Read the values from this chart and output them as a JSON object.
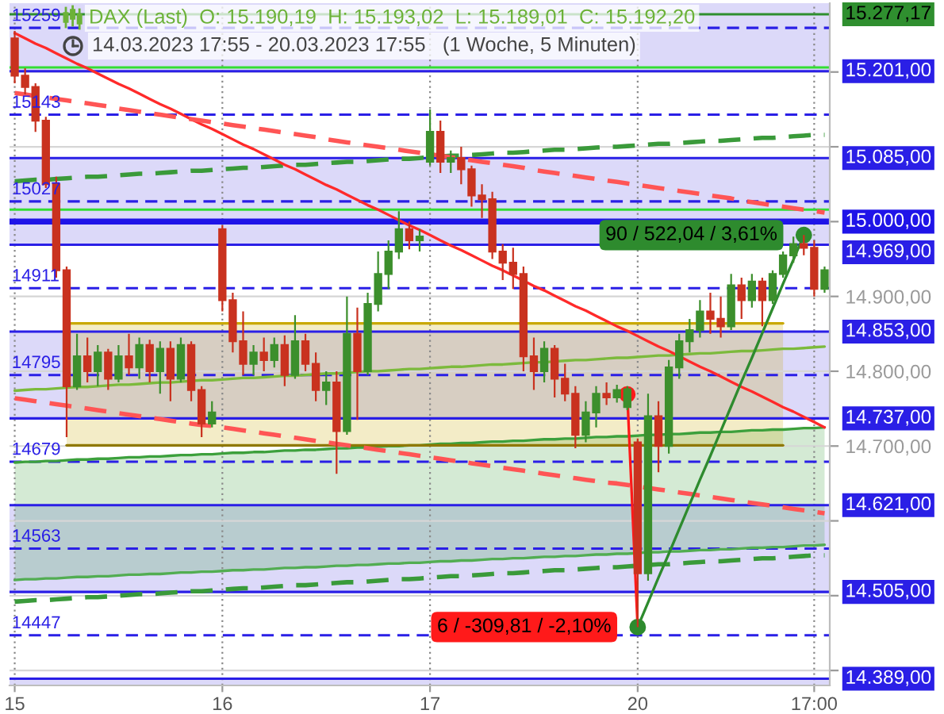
{
  "chart_data": {
    "type": "candlestick",
    "title": "DAX (Last)  O: 15.190,19  H: 15.193,02  L: 15.189,01  C: 15.192,20",
    "subtitle": "14.03.2023 17:55 - 20.03.2023 17:55   (1 Woche, 5 Minuten)",
    "categories": [
      "15",
      null,
      null,
      null,
      null,
      null,
      null,
      null,
      null,
      null,
      null,
      null,
      null,
      null,
      null,
      null,
      null,
      null,
      null,
      null,
      "16",
      null,
      null,
      null,
      null,
      null,
      null,
      null,
      null,
      null,
      null,
      null,
      null,
      null,
      null,
      null,
      null,
      null,
      null,
      null,
      "17",
      null,
      null,
      null,
      null,
      null,
      null,
      null,
      null,
      null,
      null,
      null,
      null,
      null,
      null,
      null,
      null,
      null,
      null,
      null,
      "20",
      null,
      null,
      null,
      null,
      null,
      null,
      null,
      null,
      null,
      null,
      null,
      null,
      null,
      null,
      null,
      null,
      "17:00",
      null
    ],
    "ohlc": [
      [
        15245,
        15255,
        15185,
        15195
      ],
      [
        15195,
        15205,
        15170,
        15180
      ],
      [
        15180,
        15185,
        15120,
        15135
      ],
      [
        15135,
        15140,
        15045,
        15050
      ],
      [
        15050,
        15060,
        14925,
        14935
      ],
      [
        14935,
        14940,
        14712,
        14780
      ],
      [
        14780,
        14850,
        14775,
        14820
      ],
      [
        14820,
        14845,
        14785,
        14800
      ],
      [
        14800,
        14835,
        14780,
        14825
      ],
      [
        14825,
        14830,
        14775,
        14790
      ],
      [
        14790,
        14835,
        14785,
        14820
      ],
      [
        14820,
        14850,
        14795,
        14805
      ],
      [
        14805,
        14845,
        14790,
        14835
      ],
      [
        14835,
        14842,
        14785,
        14800
      ],
      [
        14800,
        14840,
        14770,
        14830
      ],
      [
        14830,
        14840,
        14760,
        14790
      ],
      [
        14790,
        14845,
        14785,
        14835
      ],
      [
        14835,
        14840,
        14760,
        14775
      ],
      [
        14775,
        14780,
        14712,
        14730
      ],
      [
        14730,
        14760,
        14725,
        14745
      ],
      [
        14990,
        14995,
        14880,
        14895
      ],
      [
        14895,
        14905,
        14825,
        14840
      ],
      [
        14840,
        14880,
        14795,
        14810
      ],
      [
        14810,
        14835,
        14795,
        14825
      ],
      [
        14825,
        14845,
        14800,
        14815
      ],
      [
        14815,
        14845,
        14805,
        14835
      ],
      [
        14835,
        14848,
        14780,
        14795
      ],
      [
        14795,
        14875,
        14790,
        14840
      ],
      [
        14840,
        14850,
        14800,
        14810
      ],
      [
        14810,
        14825,
        14760,
        14775
      ],
      [
        14775,
        14800,
        14755,
        14785
      ],
      [
        14785,
        14800,
        14663,
        14720
      ],
      [
        14720,
        14900,
        14715,
        14850
      ],
      [
        14850,
        14885,
        14735,
        14800
      ],
      [
        14800,
        14905,
        14795,
        14890
      ],
      [
        14890,
        14960,
        14880,
        14930
      ],
      [
        14930,
        14975,
        14910,
        14960
      ],
      [
        14960,
        15014,
        14950,
        14990
      ],
      [
        14990,
        15000,
        14963,
        14975
      ],
      [
        14975,
        14990,
        14960,
        14980
      ],
      [
        15080,
        15150,
        15075,
        15120
      ],
      [
        15120,
        15135,
        15065,
        15080
      ],
      [
        15080,
        15095,
        15065,
        15085
      ],
      [
        15085,
        15100,
        15050,
        15070
      ],
      [
        15070,
        15075,
        15020,
        15035
      ],
      [
        15035,
        15050,
        15005,
        15030
      ],
      [
        15030,
        15040,
        14950,
        14960
      ],
      [
        14960,
        14970,
        14922,
        14945
      ],
      [
        14945,
        14965,
        14910,
        14930
      ],
      [
        14930,
        14940,
        14800,
        14820
      ],
      [
        14820,
        14845,
        14775,
        14800
      ],
      [
        14800,
        14840,
        14785,
        14830
      ],
      [
        14830,
        14835,
        14765,
        14790
      ],
      [
        14790,
        14810,
        14760,
        14770
      ],
      [
        14770,
        14780,
        14697,
        14715
      ],
      [
        14715,
        14760,
        14705,
        14745
      ],
      [
        14745,
        14780,
        14725,
        14770
      ],
      [
        14770,
        14785,
        14755,
        14765
      ],
      [
        14765,
        14782,
        14758,
        14775
      ],
      [
        14752,
        14780,
        14748,
        14776
      ],
      [
        14705,
        14710,
        14458,
        14530
      ],
      [
        14530,
        14770,
        14520,
        14740
      ],
      [
        14740,
        14760,
        14665,
        14700
      ],
      [
        14700,
        14815,
        14690,
        14805
      ],
      [
        14805,
        14850,
        14790,
        14840
      ],
      [
        14840,
        14870,
        14825,
        14855
      ],
      [
        14855,
        14895,
        14845,
        14880
      ],
      [
        14880,
        14905,
        14850,
        14870
      ],
      [
        14870,
        14900,
        14845,
        14860
      ],
      [
        14860,
        14930,
        14855,
        14915
      ],
      [
        14915,
        14925,
        14870,
        14895
      ],
      [
        14895,
        14930,
        14885,
        14920
      ],
      [
        14920,
        14925,
        14860,
        14895
      ],
      [
        14895,
        14935,
        14890,
        14930
      ],
      [
        14930,
        14960,
        14925,
        14955
      ],
      [
        14955,
        14980,
        14945,
        14970
      ],
      [
        14970,
        14982,
        14955,
        14965
      ],
      [
        14965,
        14975,
        14900,
        14910
      ],
      [
        14910,
        14940,
        14905,
        14935
      ]
    ],
    "colors": [
      "#c9321f",
      "#c9321f",
      "#c9321f",
      "#c9321f",
      "#c9321f",
      "#c9321f",
      "#3c8f2c",
      "#c9321f",
      "#3c8f2c",
      "#c9321f",
      "#3c8f2c",
      "#c9321f",
      "#3c8f2c",
      "#c9321f",
      "#3c8f2c",
      "#c9321f",
      "#3c8f2c",
      "#c9321f",
      "#c9321f",
      "#3c8f2c",
      "#c9321f",
      "#c9321f",
      "#c9321f",
      "#3c8f2c",
      "#c9321f",
      "#3c8f2c",
      "#c9321f",
      "#3c8f2c",
      "#c9321f",
      "#c9321f",
      "#3c8f2c",
      "#c9321f",
      "#3c8f2c",
      "#c9321f",
      "#3c8f2c",
      "#3c8f2c",
      "#3c8f2c",
      "#3c8f2c",
      "#c9321f",
      "#3c8f2c",
      "#3c8f2c",
      "#c9321f",
      "#3c8f2c",
      "#c9321f",
      "#c9321f",
      "#c9321f",
      "#c9321f",
      "#c9321f",
      "#c9321f",
      "#c9321f",
      "#c9321f",
      "#3c8f2c",
      "#c9321f",
      "#c9321f",
      "#c9321f",
      "#3c8f2c",
      "#3c8f2c",
      "#c9321f",
      "#3c8f2c",
      "#3c8f2c",
      "#c9321f",
      "#3c8f2c",
      "#c9321f",
      "#3c8f2c",
      "#3c8f2c",
      "#3c8f2c",
      "#3c8f2c",
      "#c9321f",
      "#c9321f",
      "#3c8f2c",
      "#c9321f",
      "#3c8f2c",
      "#c9321f",
      "#3c8f2c",
      "#3c8f2c",
      "#3c8f2c",
      "#c9321f",
      "#c9321f",
      "#3c8f2c"
    ],
    "series": [
      {
        "type": "line",
        "color": "#3ca03c",
        "line_style": "solid",
        "values": [
          14678,
          14679,
          14679,
          14680,
          14680,
          14681,
          14682,
          14682,
          14683,
          14683,
          14684,
          14685,
          14685,
          14686,
          14686,
          14687,
          14688,
          14688,
          14689,
          14689,
          14690,
          14691,
          14691,
          14692,
          14692,
          14693,
          14694,
          14694,
          14695,
          14695,
          14696,
          14697,
          14697,
          14698,
          14698,
          14699,
          14700,
          14700,
          14701,
          14701,
          14702,
          14703,
          14703,
          14704,
          14704,
          14705,
          14706,
          14706,
          14707,
          14707,
          14708,
          14709,
          14709,
          14710,
          14710,
          14711,
          14712,
          14712,
          14713,
          14713,
          14714,
          14715,
          14715,
          14716,
          14716,
          14717,
          14718,
          14718,
          14719,
          14719,
          14720,
          14721,
          14721,
          14722,
          14722,
          14723,
          14724,
          14724,
          14725
        ],
        "upper": [
          14678,
          14679,
          14679,
          14680,
          14680,
          14681,
          14682,
          14682,
          14683,
          14683,
          14684,
          14685,
          14685,
          14686,
          14686,
          14687,
          14688,
          14688,
          14689,
          14689,
          14690,
          14691,
          14691,
          14692,
          14692,
          14693,
          14694,
          14694,
          14695,
          14695,
          14696,
          14697,
          14697,
          14698,
          14698,
          14699,
          14700,
          14700,
          14701,
          14701,
          14702,
          14703,
          14703,
          14704,
          14704,
          14705,
          14706,
          14706,
          14707,
          14707,
          14708,
          14709,
          14709,
          14710,
          14710,
          14711,
          14712,
          14712,
          14713,
          14713,
          14714,
          14715,
          14715,
          14716,
          14716,
          14717,
          14718,
          14718,
          14719,
          14719,
          14720,
          14721,
          14721,
          14722,
          14722,
          14723,
          14724,
          14724,
          14725
        ],
        "lower": [
          14521,
          14522,
          14522,
          14523,
          14523,
          14524,
          14525,
          14525,
          14526,
          14526,
          14527,
          14528,
          14528,
          14529,
          14529,
          14530,
          14531,
          14531,
          14532,
          14532,
          14533,
          14534,
          14534,
          14535,
          14535,
          14536,
          14537,
          14537,
          14538,
          14538,
          14539,
          14540,
          14540,
          14541,
          14541,
          14542,
          14543,
          14543,
          14544,
          14544,
          14545,
          14546,
          14546,
          14547,
          14547,
          14548,
          14549,
          14549,
          14550,
          14550,
          14551,
          14552,
          14552,
          14553,
          14553,
          14554,
          14555,
          14555,
          14556,
          14556,
          14557,
          14558,
          14558,
          14559,
          14559,
          14560,
          14561,
          14561,
          14562,
          14562,
          14563,
          14564,
          14564,
          14565,
          14565,
          14566,
          14567,
          14567,
          14568
        ]
      },
      {
        "type": "line",
        "color": "#52ad52",
        "line_style": "solid",
        "values": [
          14521,
          14522,
          14522,
          14523,
          14523,
          14524,
          14525,
          14525,
          14526,
          14526,
          14527,
          14528,
          14528,
          14529,
          14529,
          14530,
          14531,
          14531,
          14532,
          14532,
          14533,
          14534,
          14534,
          14535,
          14535,
          14536,
          14537,
          14537,
          14538,
          14538,
          14539,
          14540,
          14540,
          14541,
          14541,
          14542,
          14543,
          14543,
          14544,
          14544,
          14545,
          14546,
          14546,
          14547,
          14547,
          14548,
          14549,
          14549,
          14550,
          14550,
          14551,
          14552,
          14552,
          14553,
          14553,
          14554,
          14555,
          14555,
          14556,
          14556,
          14557,
          14558,
          14558,
          14559,
          14559,
          14560,
          14561,
          14561,
          14562,
          14562,
          14563,
          14564,
          14564,
          14565,
          14565,
          14566,
          14567,
          14567,
          14568
        ]
      },
      {
        "type": "line",
        "color": "#c9a800",
        "line_style": "solid",
        "values": [
          null,
          null,
          null,
          null,
          null,
          14864,
          14864,
          14864,
          14864,
          14864,
          14864,
          14864,
          14864,
          14864,
          14864,
          14864,
          14864,
          14864,
          14864,
          14864,
          14864,
          14864,
          14864,
          14864,
          14864,
          14864,
          14864,
          14864,
          14864,
          14864,
          14864,
          14864,
          14864,
          14864,
          14864,
          14864,
          14864,
          14864,
          14864,
          14864,
          14864,
          14864,
          14864,
          14864,
          14864,
          14864,
          14864,
          14864,
          14864,
          14864,
          14864,
          14864,
          14864,
          14864,
          14864,
          14864,
          14864,
          14864,
          14864,
          14864,
          14864,
          14864,
          14864,
          14864,
          14864,
          14864,
          14864,
          14864,
          14864,
          14864,
          14864,
          14864,
          14864,
          14864,
          14864,
          null,
          null,
          null,
          null
        ],
        "upper": [
          null,
          null,
          null,
          null,
          null,
          14864,
          14864,
          14864,
          14864,
          14864,
          14864,
          14864,
          14864,
          14864,
          14864,
          14864,
          14864,
          14864,
          14864,
          14864,
          14864,
          14864,
          14864,
          14864,
          14864,
          14864,
          14864,
          14864,
          14864,
          14864,
          14864,
          14864,
          14864,
          14864,
          14864,
          14864,
          14864,
          14864,
          14864,
          14864,
          14864,
          14864,
          14864,
          14864,
          14864,
          14864,
          14864,
          14864,
          14864,
          14864,
          14864,
          14864,
          14864,
          14864,
          14864,
          14864,
          14864,
          14864,
          14864,
          14864,
          14864,
          14864,
          14864,
          14864,
          14864,
          14864,
          14864,
          14864,
          14864,
          14864,
          14864,
          14864,
          14864,
          14864,
          14864,
          null,
          null,
          null,
          null
        ],
        "lower": [
          null,
          null,
          null,
          null,
          null,
          14701,
          14701,
          14701,
          14701,
          14701,
          14701,
          14701,
          14701,
          14701,
          14701,
          14701,
          14701,
          14701,
          14701,
          14701,
          14701,
          14701,
          14701,
          14701,
          14701,
          14701,
          14701,
          14701,
          14701,
          14701,
          14701,
          14701,
          14701,
          14701,
          14701,
          14701,
          14701,
          14701,
          14701,
          14701,
          14701,
          14701,
          14701,
          14701,
          14701,
          14701,
          14701,
          14701,
          14701,
          14701,
          14701,
          14701,
          14701,
          14701,
          14701,
          14701,
          14701,
          14701,
          14701,
          14701,
          14701,
          14701,
          14701,
          14701,
          14701,
          14701,
          14701,
          14701,
          14701,
          14701,
          14701,
          14701,
          14701,
          14701,
          14701,
          null,
          null,
          null,
          null
        ]
      },
      {
        "type": "line",
        "color": "#8f7800",
        "line_style": "solid",
        "values": [
          null,
          null,
          null,
          null,
          null,
          14701,
          14701,
          14701,
          14701,
          14701,
          14701,
          14701,
          14701,
          14701,
          14701,
          14701,
          14701,
          14701,
          14701,
          14701,
          14701,
          14701,
          14701,
          14701,
          14701,
          14701,
          14701,
          14701,
          14701,
          14701,
          14701,
          14701,
          14701,
          14701,
          14701,
          14701,
          14701,
          14701,
          14701,
          14701,
          14701,
          14701,
          14701,
          14701,
          14701,
          14701,
          14701,
          14701,
          14701,
          14701,
          14701,
          14701,
          14701,
          14701,
          14701,
          14701,
          14701,
          14701,
          14701,
          14701,
          14701,
          14701,
          14701,
          14701,
          14701,
          14701,
          14701,
          14701,
          14701,
          14701,
          14701,
          14701,
          14701,
          14701,
          14701,
          null,
          null,
          null,
          null
        ]
      },
      {
        "type": "line",
        "color": "#7cba3c",
        "line_style": "solid",
        "values": [
          14774,
          14775,
          14776,
          14776,
          14777,
          14778,
          14779,
          14779,
          14780,
          14781,
          14782,
          14782,
          14783,
          14784,
          14785,
          14785,
          14786,
          14787,
          14788,
          14788,
          14789,
          14790,
          14791,
          14791,
          14792,
          14793,
          14794,
          14794,
          14795,
          14796,
          14797,
          14797,
          14798,
          14799,
          14800,
          14800,
          14801,
          14802,
          14803,
          14803,
          14804,
          14805,
          14806,
          14806,
          14807,
          14808,
          14809,
          14809,
          14810,
          14811,
          14812,
          14812,
          14813,
          14814,
          14815,
          14815,
          14816,
          14817,
          14818,
          14818,
          14819,
          14820,
          14821,
          14821,
          14822,
          14823,
          14824,
          14824,
          14825,
          14826,
          14827,
          14827,
          14828,
          14829,
          14830,
          14830,
          14831,
          14832,
          14833
        ]
      },
      {
        "type": "line",
        "color": "#3a9a3a",
        "line_style": "dashed",
        "values": [
          15054,
          15055,
          15056,
          15056,
          15057,
          15058,
          15059,
          15060,
          15060,
          15061,
          15062,
          15063,
          15064,
          15064,
          15065,
          15066,
          15067,
          15068,
          15068,
          15069,
          15070,
          15071,
          15072,
          15072,
          15073,
          15074,
          15075,
          15076,
          15076,
          15077,
          15078,
          15079,
          15080,
          15080,
          15081,
          15082,
          15083,
          15084,
          15084,
          15085,
          15086,
          15087,
          15088,
          15088,
          15089,
          15090,
          15091,
          15092,
          15092,
          15093,
          15094,
          15095,
          15096,
          15096,
          15097,
          15098,
          15099,
          15100,
          15100,
          15101,
          15102,
          15103,
          15104,
          15104,
          15105,
          15106,
          15107,
          15108,
          15108,
          15109,
          15110,
          15111,
          15112,
          15112,
          15113,
          15114,
          15115,
          15116,
          15116
        ]
      },
      {
        "type": "line",
        "color": "#3a9a3a",
        "line_style": "dashed",
        "values": [
          14492,
          14493,
          14494,
          14494,
          14495,
          14496,
          14497,
          14498,
          14498,
          14499,
          14500,
          14501,
          14502,
          14502,
          14503,
          14504,
          14505,
          14506,
          14506,
          14507,
          14508,
          14509,
          14510,
          14510,
          14511,
          14512,
          14513,
          14514,
          14514,
          14515,
          14516,
          14517,
          14518,
          14518,
          14519,
          14520,
          14521,
          14522,
          14522,
          14523,
          14524,
          14525,
          14526,
          14526,
          14527,
          14528,
          14529,
          14530,
          14530,
          14531,
          14532,
          14533,
          14534,
          14534,
          14535,
          14536,
          14537,
          14538,
          14538,
          14539,
          14540,
          14541,
          14542,
          14542,
          14543,
          14544,
          14545,
          14546,
          14546,
          14547,
          14548,
          14549,
          14550,
          14550,
          14551,
          14552,
          14553,
          14554,
          14554
        ]
      },
      {
        "type": "line",
        "color": "#ff2a2a",
        "line_style": "solid",
        "values": [
          15252,
          15245,
          15238,
          15232,
          15225,
          15218,
          15211,
          15205,
          15198,
          15191,
          15184,
          15178,
          15171,
          15164,
          15157,
          15151,
          15144,
          15137,
          15130,
          15124,
          15117,
          15110,
          15103,
          15097,
          15090,
          15083,
          15076,
          15070,
          15063,
          15056,
          15049,
          15043,
          15036,
          15029,
          15022,
          15016,
          15009,
          15002,
          14995,
          14989,
          14982,
          14975,
          14968,
          14962,
          14955,
          14948,
          14941,
          14935,
          14928,
          14921,
          14914,
          14908,
          14901,
          14894,
          14887,
          14881,
          14874,
          14867,
          14860,
          14854,
          14847,
          14840,
          14833,
          14827,
          14820,
          14813,
          14806,
          14800,
          14793,
          14786,
          14779,
          14773,
          14766,
          14759,
          14752,
          14746,
          14739,
          14732,
          14725
        ]
      },
      {
        "type": "line",
        "color": "#ff5555",
        "line_style": "dashed",
        "values": [
          15172,
          15170,
          15168,
          15166,
          15164,
          15162,
          15160,
          15158,
          15156,
          15154,
          15151,
          15149,
          15147,
          15145,
          15143,
          15141,
          15139,
          15137,
          15135,
          15133,
          15131,
          15129,
          15127,
          15125,
          15123,
          15121,
          15119,
          15117,
          15115,
          15113,
          15110,
          15108,
          15106,
          15104,
          15102,
          15100,
          15098,
          15096,
          15094,
          15092,
          15090,
          15088,
          15086,
          15084,
          15082,
          15080,
          15078,
          15076,
          15074,
          15072,
          15069,
          15067,
          15065,
          15063,
          15061,
          15059,
          15057,
          15055,
          15053,
          15051,
          15049,
          15047,
          15045,
          15043,
          15041,
          15039,
          15037,
          15035,
          15033,
          15031,
          15028,
          15026,
          15024,
          15022,
          15020,
          15018,
          15016,
          15014,
          15012
        ]
      },
      {
        "type": "line",
        "color": "#ff5555",
        "line_style": "dashed",
        "values": [
          14764,
          14762,
          14760,
          14758,
          14756,
          14754,
          14752,
          14750,
          14748,
          14746,
          14744,
          14742,
          14740,
          14738,
          14736,
          14734,
          14732,
          14730,
          14728,
          14727,
          14725,
          14723,
          14721,
          14719,
          14717,
          14715,
          14713,
          14711,
          14709,
          14707,
          14705,
          14703,
          14701,
          14699,
          14697,
          14695,
          14693,
          14691,
          14689,
          14687,
          14685,
          14683,
          14681,
          14679,
          14677,
          14675,
          14673,
          14671,
          14669,
          14667,
          14665,
          14663,
          14661,
          14659,
          14657,
          14655,
          14653,
          14651,
          14650,
          14648,
          14646,
          14644,
          14642,
          14640,
          14638,
          14636,
          14634,
          14632,
          14630,
          14628,
          14626,
          14624,
          14622,
          14620,
          14618,
          14616,
          14614,
          14612,
          14610
        ]
      },
      {
        "type": "line",
        "color": "#ff1a1a",
        "line_style": "solid",
        "values": [
          null,
          null,
          null,
          null,
          null,
          null,
          null,
          null,
          null,
          null,
          null,
          null,
          null,
          null,
          null,
          null,
          null,
          null,
          null,
          null,
          null,
          null,
          null,
          null,
          null,
          null,
          null,
          null,
          null,
          null,
          null,
          null,
          null,
          null,
          null,
          null,
          null,
          null,
          null,
          null,
          null,
          null,
          null,
          null,
          null,
          null,
          null,
          null,
          null,
          null,
          null,
          null,
          null,
          null,
          null,
          null,
          null,
          null,
          null,
          14769,
          14458,
          null,
          null,
          null,
          null,
          null,
          null,
          null,
          null,
          null,
          null,
          null,
          null,
          null,
          null,
          null,
          null,
          null,
          null
        ]
      },
      {
        "type": "line",
        "color": "#2e8b2e",
        "line_style": "solid",
        "values": [
          null,
          null,
          null,
          null,
          null,
          null,
          null,
          null,
          null,
          null,
          null,
          null,
          null,
          null,
          null,
          null,
          null,
          null,
          null,
          null,
          null,
          null,
          null,
          null,
          null,
          null,
          null,
          null,
          null,
          null,
          null,
          null,
          null,
          null,
          null,
          null,
          null,
          null,
          null,
          null,
          null,
          null,
          null,
          null,
          null,
          null,
          null,
          null,
          null,
          null,
          null,
          null,
          null,
          null,
          null,
          null,
          null,
          null,
          null,
          null,
          14458,
          14491,
          14524,
          14556,
          14589,
          14622,
          14655,
          14687,
          14720,
          14753,
          14786,
          14818,
          14851,
          14884,
          14917,
          14949,
          14982,
          null,
          null
        ]
      },
      {
        "type": "scatter",
        "color": "#ff1a1a",
        "marker": "circle",
        "values": [
          null,
          null,
          null,
          null,
          null,
          null,
          null,
          null,
          null,
          null,
          null,
          null,
          null,
          null,
          null,
          null,
          null,
          null,
          null,
          null,
          null,
          null,
          null,
          null,
          null,
          null,
          null,
          null,
          null,
          null,
          null,
          null,
          null,
          null,
          null,
          null,
          null,
          null,
          null,
          null,
          null,
          null,
          null,
          null,
          null,
          null,
          null,
          null,
          null,
          null,
          null,
          null,
          null,
          null,
          null,
          null,
          null,
          null,
          null,
          14769,
          null,
          null,
          null,
          null,
          null,
          null,
          null,
          null,
          null,
          null,
          null,
          null,
          null,
          null,
          null,
          null,
          null,
          null,
          null
        ]
      },
      {
        "type": "scatter",
        "color": "#2e8b2e",
        "marker": "circle",
        "values": [
          null,
          null,
          null,
          null,
          null,
          null,
          null,
          null,
          null,
          null,
          null,
          null,
          null,
          null,
          null,
          null,
          null,
          null,
          null,
          null,
          null,
          null,
          null,
          null,
          null,
          null,
          null,
          null,
          null,
          null,
          null,
          null,
          null,
          null,
          null,
          null,
          null,
          null,
          null,
          null,
          null,
          null,
          null,
          null,
          null,
          null,
          null,
          null,
          null,
          null,
          null,
          null,
          null,
          null,
          null,
          null,
          null,
          null,
          null,
          null,
          14458,
          null,
          null,
          null,
          null,
          null,
          null,
          null,
          null,
          null,
          null,
          null,
          null,
          null,
          null,
          null,
          14982,
          null,
          null
        ]
      }
    ],
    "annotations": [
      "6 / -309,81 / -2,10%",
      "90 / 522,04 / 3,61%"
    ],
    "ylim": [
      14380,
      15292
    ],
    "yticks": [
      {
        "value": 14400,
        "label": null
      },
      {
        "value": 14500,
        "label": null
      },
      {
        "value": 14600,
        "label": null
      },
      {
        "value": 14700,
        "label": "14.700,00"
      },
      {
        "value": 14800,
        "label": "14.800,00"
      },
      {
        "value": 14900,
        "label": "14.900,00"
      },
      {
        "value": 15000,
        "label": null
      },
      {
        "value": 15100,
        "label": null
      },
      {
        "value": 15200,
        "label": null
      }
    ],
    "grid": true,
    "bands": [
      {
        "axis": "y",
        "from": 15201,
        "to": 15292,
        "color": "#dcd9f9"
      },
      {
        "axis": "y",
        "from": 14969,
        "to": 15085,
        "color": "#dcd9f9"
      },
      {
        "axis": "y",
        "from": 14737,
        "to": 14853,
        "color": "#dcd9f9"
      },
      {
        "axis": "y",
        "from": 14505,
        "to": 14621,
        "color": "#dcd9f9"
      },
      {
        "axis": "y",
        "from": 14380,
        "to": 14389,
        "color": "#dcd9f9"
      },
      {
        "axis": "y",
        "from": 14996,
        "to": 15004,
        "color": "#1f14e8",
        "label": "15.000,00"
      }
    ],
    "ref_lines": [
      {
        "axis": "y",
        "value": 15277.17,
        "label": "15.277,17",
        "color": "#2f8f2f",
        "line_style": "solid"
      },
      {
        "axis": "y",
        "value": 15259,
        "label": "15259",
        "color": "#2a1fe6",
        "line_style": "dashed"
      },
      {
        "axis": "y",
        "value": 15206,
        "color": "#33dd33",
        "line_style": "solid"
      },
      {
        "axis": "y",
        "value": 15201,
        "label": "15.201,00",
        "color": "#2a1fe6",
        "line_style": "solid"
      },
      {
        "axis": "y",
        "value": 15143,
        "label": "15143",
        "color": "#2a1fe6",
        "line_style": "dashed"
      },
      {
        "axis": "y",
        "value": 15085,
        "label": "15.085,00",
        "color": "#2a1fe6",
        "line_style": "solid"
      },
      {
        "axis": "y",
        "value": 15027,
        "label": "15027",
        "color": "#2a1fe6",
        "line_style": "dashed"
      },
      {
        "axis": "y",
        "value": 15016,
        "color": "#33dd33",
        "line_style": "solid"
      },
      {
        "axis": "y",
        "value": 14969,
        "label": "14.969,00",
        "color": "#2a1fe6",
        "line_style": "solid"
      },
      {
        "axis": "y",
        "value": 14911,
        "label": "14911",
        "color": "#2a1fe6",
        "line_style": "dashed"
      },
      {
        "axis": "y",
        "value": 14853,
        "label": "14.853,00",
        "color": "#2a1fe6",
        "line_style": "solid"
      },
      {
        "axis": "y",
        "value": 14795,
        "label": "14795",
        "color": "#2a1fe6",
        "line_style": "dashed"
      },
      {
        "axis": "y",
        "value": 14737,
        "label": "14.737,00",
        "color": "#2a1fe6",
        "line_style": "solid"
      },
      {
        "axis": "y",
        "value": 14679,
        "label": "14679",
        "color": "#2a1fe6",
        "line_style": "dashed"
      },
      {
        "axis": "y",
        "value": 14621,
        "label": "14.621,00",
        "color": "#2a1fe6",
        "line_style": "solid"
      },
      {
        "axis": "y",
        "value": 14563,
        "label": "14563",
        "color": "#2a1fe6",
        "line_style": "dashed"
      },
      {
        "axis": "y",
        "value": 14505,
        "label": "14.505,00",
        "color": "#2a1fe6",
        "line_style": "solid"
      },
      {
        "axis": "y",
        "value": 14447,
        "label": "14447",
        "color": "#2a1fe6",
        "line_style": "dashed"
      },
      {
        "axis": "y",
        "value": 14389,
        "label": "14.389,00",
        "color": "#2a1fe6",
        "line_style": "solid"
      }
    ]
  }
}
